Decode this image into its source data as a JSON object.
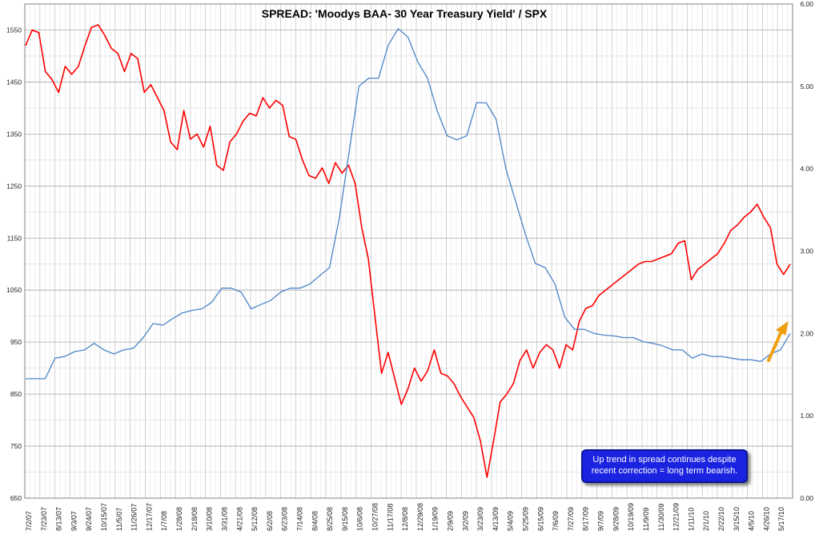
{
  "chart_data": {
    "type": "line",
    "title": "SPREAD: 'Moodys BAA- 30 Year Treasury Yield' / SPX",
    "xlabel": "",
    "ylabel": "",
    "ylim_left": [
      650,
      1600
    ],
    "ylim_right": [
      0,
      6
    ],
    "left_ticks": [
      "650",
      "750",
      "850",
      "950",
      "1050",
      "1150",
      "1250",
      "1350",
      "1450",
      "1550"
    ],
    "right_ticks": [
      "0.00",
      "1.00",
      "2.00",
      "3.00",
      "4.00",
      "5.00",
      "6.00"
    ],
    "grid": true,
    "x_tick_labels": [
      "7/2/07",
      "7/23/07",
      "8/13/07",
      "9/3/07",
      "9/24/07",
      "10/15/07",
      "11/5/07",
      "11/26/07",
      "12/17/07",
      "1/7/08",
      "1/28/08",
      "2/18/08",
      "3/10/08",
      "3/31/08",
      "4/21/08",
      "5/12/08",
      "6/2/08",
      "6/23/08",
      "7/14/08",
      "8/4/08",
      "8/25/08",
      "9/15/08",
      "10/6/08",
      "10/27/08",
      "11/17/08",
      "12/8/08",
      "12/29/08",
      "1/19/09",
      "2/9/09",
      "3/2/09",
      "3/23/09",
      "4/13/09",
      "5/4/09",
      "5/25/09",
      "6/15/09",
      "7/6/09",
      "7/27/09",
      "8/17/09",
      "9/7/09",
      "9/28/09",
      "10/19/09",
      "11/9/09",
      "11/30/09",
      "12/21/09",
      "1/11/10",
      "2/1/10",
      "2/22/10",
      "3/15/10",
      "4/5/10",
      "4/26/10",
      "5/17/10"
    ],
    "series": [
      {
        "color": "#ff0000",
        "axis": "left",
        "values": [
          1520,
          1550,
          1545,
          1470,
          1455,
          1430,
          1480,
          1465,
          1480,
          1520,
          1555,
          1560,
          1540,
          1515,
          1505,
          1470,
          1505,
          1495,
          1430,
          1445,
          1420,
          1395,
          1335,
          1320,
          1395,
          1340,
          1350,
          1325,
          1365,
          1290,
          1280,
          1335,
          1350,
          1375,
          1390,
          1385,
          1420,
          1400,
          1415,
          1405,
          1345,
          1340,
          1300,
          1270,
          1265,
          1285,
          1255,
          1295,
          1275,
          1290,
          1255,
          1170,
          1110,
          1000,
          890,
          930,
          880,
          830,
          860,
          900,
          875,
          895,
          935,
          890,
          885,
          870,
          845,
          825,
          805,
          760,
          690,
          760,
          835,
          850,
          870,
          915,
          935,
          900,
          930,
          945,
          935,
          900,
          945,
          935,
          990,
          1015,
          1020,
          1040,
          1050,
          1060,
          1070,
          1080,
          1090,
          1100,
          1105,
          1105,
          1110,
          1115,
          1120,
          1140,
          1145,
          1070,
          1090,
          1100,
          1110,
          1120,
          1140,
          1165,
          1175,
          1190,
          1200,
          1215,
          1190,
          1170,
          1100,
          1080,
          1100
        ],
        "name": ""
      },
      {
        "color": "#4a86c8",
        "axis": "right",
        "values": [
          1.45,
          1.45,
          1.45,
          1.7,
          1.72,
          1.78,
          1.8,
          1.88,
          1.8,
          1.75,
          1.8,
          1.82,
          1.95,
          2.12,
          2.1,
          2.18,
          2.25,
          2.28,
          2.3,
          2.38,
          2.55,
          2.55,
          2.5,
          2.3,
          2.35,
          2.4,
          2.5,
          2.55,
          2.55,
          2.6,
          2.7,
          2.8,
          3.4,
          4.2,
          5.0,
          5.1,
          5.1,
          5.5,
          5.7,
          5.6,
          5.3,
          5.1,
          4.7,
          4.4,
          4.35,
          4.4,
          4.8,
          4.8,
          4.6,
          4.0,
          3.6,
          3.2,
          2.85,
          2.8,
          2.6,
          2.2,
          2.05,
          2.05,
          2.0,
          1.98,
          1.97,
          1.95,
          1.95,
          1.9,
          1.88,
          1.85,
          1.8,
          1.8,
          1.7,
          1.75,
          1.72,
          1.72,
          1.7,
          1.68,
          1.68,
          1.66,
          1.75,
          1.8,
          2.0
        ],
        "name": ""
      }
    ],
    "annotation": {
      "line1": "Up trend in spread continues despite",
      "line2": "recent correction = long term bearish.",
      "arrow_color": "#f0a010"
    }
  }
}
